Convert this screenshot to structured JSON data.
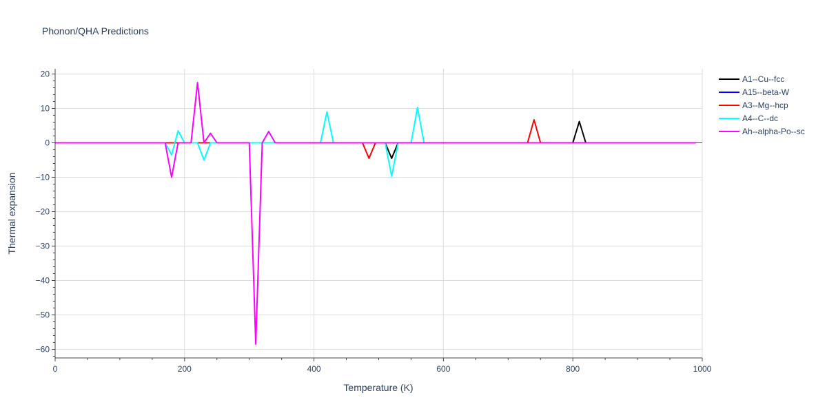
{
  "chart_data": {
    "type": "line",
    "title": "Phonon/QHA Predictions",
    "xlabel": "Temperature (K)",
    "ylabel": "Thermal expansion",
    "xlim": [
      0,
      1000
    ],
    "ylim": [
      -62.5,
      21.5
    ],
    "xticks": [
      0,
      200,
      400,
      600,
      800,
      1000
    ],
    "yticks": [
      20,
      10,
      0,
      -10,
      -20,
      -30,
      -40,
      -50,
      -60
    ],
    "xtick_labels": [
      "0",
      "200",
      "400",
      "600",
      "800",
      "1000"
    ],
    "ytick_labels": [
      "20",
      "10",
      "0",
      "−10",
      "−20",
      "−30",
      "−40",
      "−50",
      "−60"
    ],
    "grid": true,
    "legend_position": "top-right",
    "series": [
      {
        "name": "A1--Cu--fcc",
        "color": "#000000",
        "x": [
          0,
          500,
          510,
          520,
          530,
          800,
          810,
          820,
          990
        ],
        "y": [
          0,
          0,
          0,
          -4.5,
          0,
          0,
          6.2,
          0,
          0
        ]
      },
      {
        "name": "A15--beta-W",
        "color": "#0000ff",
        "x": [
          0,
          990
        ],
        "y": [
          0,
          0
        ]
      },
      {
        "name": "A3--Mg--hcp",
        "color": "#ff0000",
        "x": [
          0,
          475,
          485,
          495,
          730,
          740,
          750,
          990
        ],
        "y": [
          0,
          0,
          -4.5,
          0,
          0,
          6.7,
          0,
          0
        ]
      },
      {
        "name": "A4--C--dc",
        "color": "#00ffff",
        "x": [
          0,
          170,
          180,
          190,
          200,
          210,
          220,
          230,
          240,
          410,
          420,
          430,
          510,
          520,
          530,
          550,
          560,
          570,
          990
        ],
        "y": [
          0,
          0,
          -3.5,
          3.5,
          0,
          0,
          0,
          -5,
          0,
          0,
          9,
          0,
          0,
          -9.7,
          0,
          0,
          10.3,
          0,
          0
        ]
      },
      {
        "name": "Ah--alpha-Po--sc",
        "color": "#ff00ff",
        "x": [
          0,
          170,
          180,
          190,
          200,
          210,
          220,
          230,
          240,
          250,
          300,
          310,
          320,
          330,
          340,
          990
        ],
        "y": [
          0,
          0,
          -10,
          0,
          0,
          0,
          17.5,
          0,
          2.8,
          0,
          0,
          -58.5,
          0,
          3.3,
          0,
          0
        ]
      }
    ]
  }
}
